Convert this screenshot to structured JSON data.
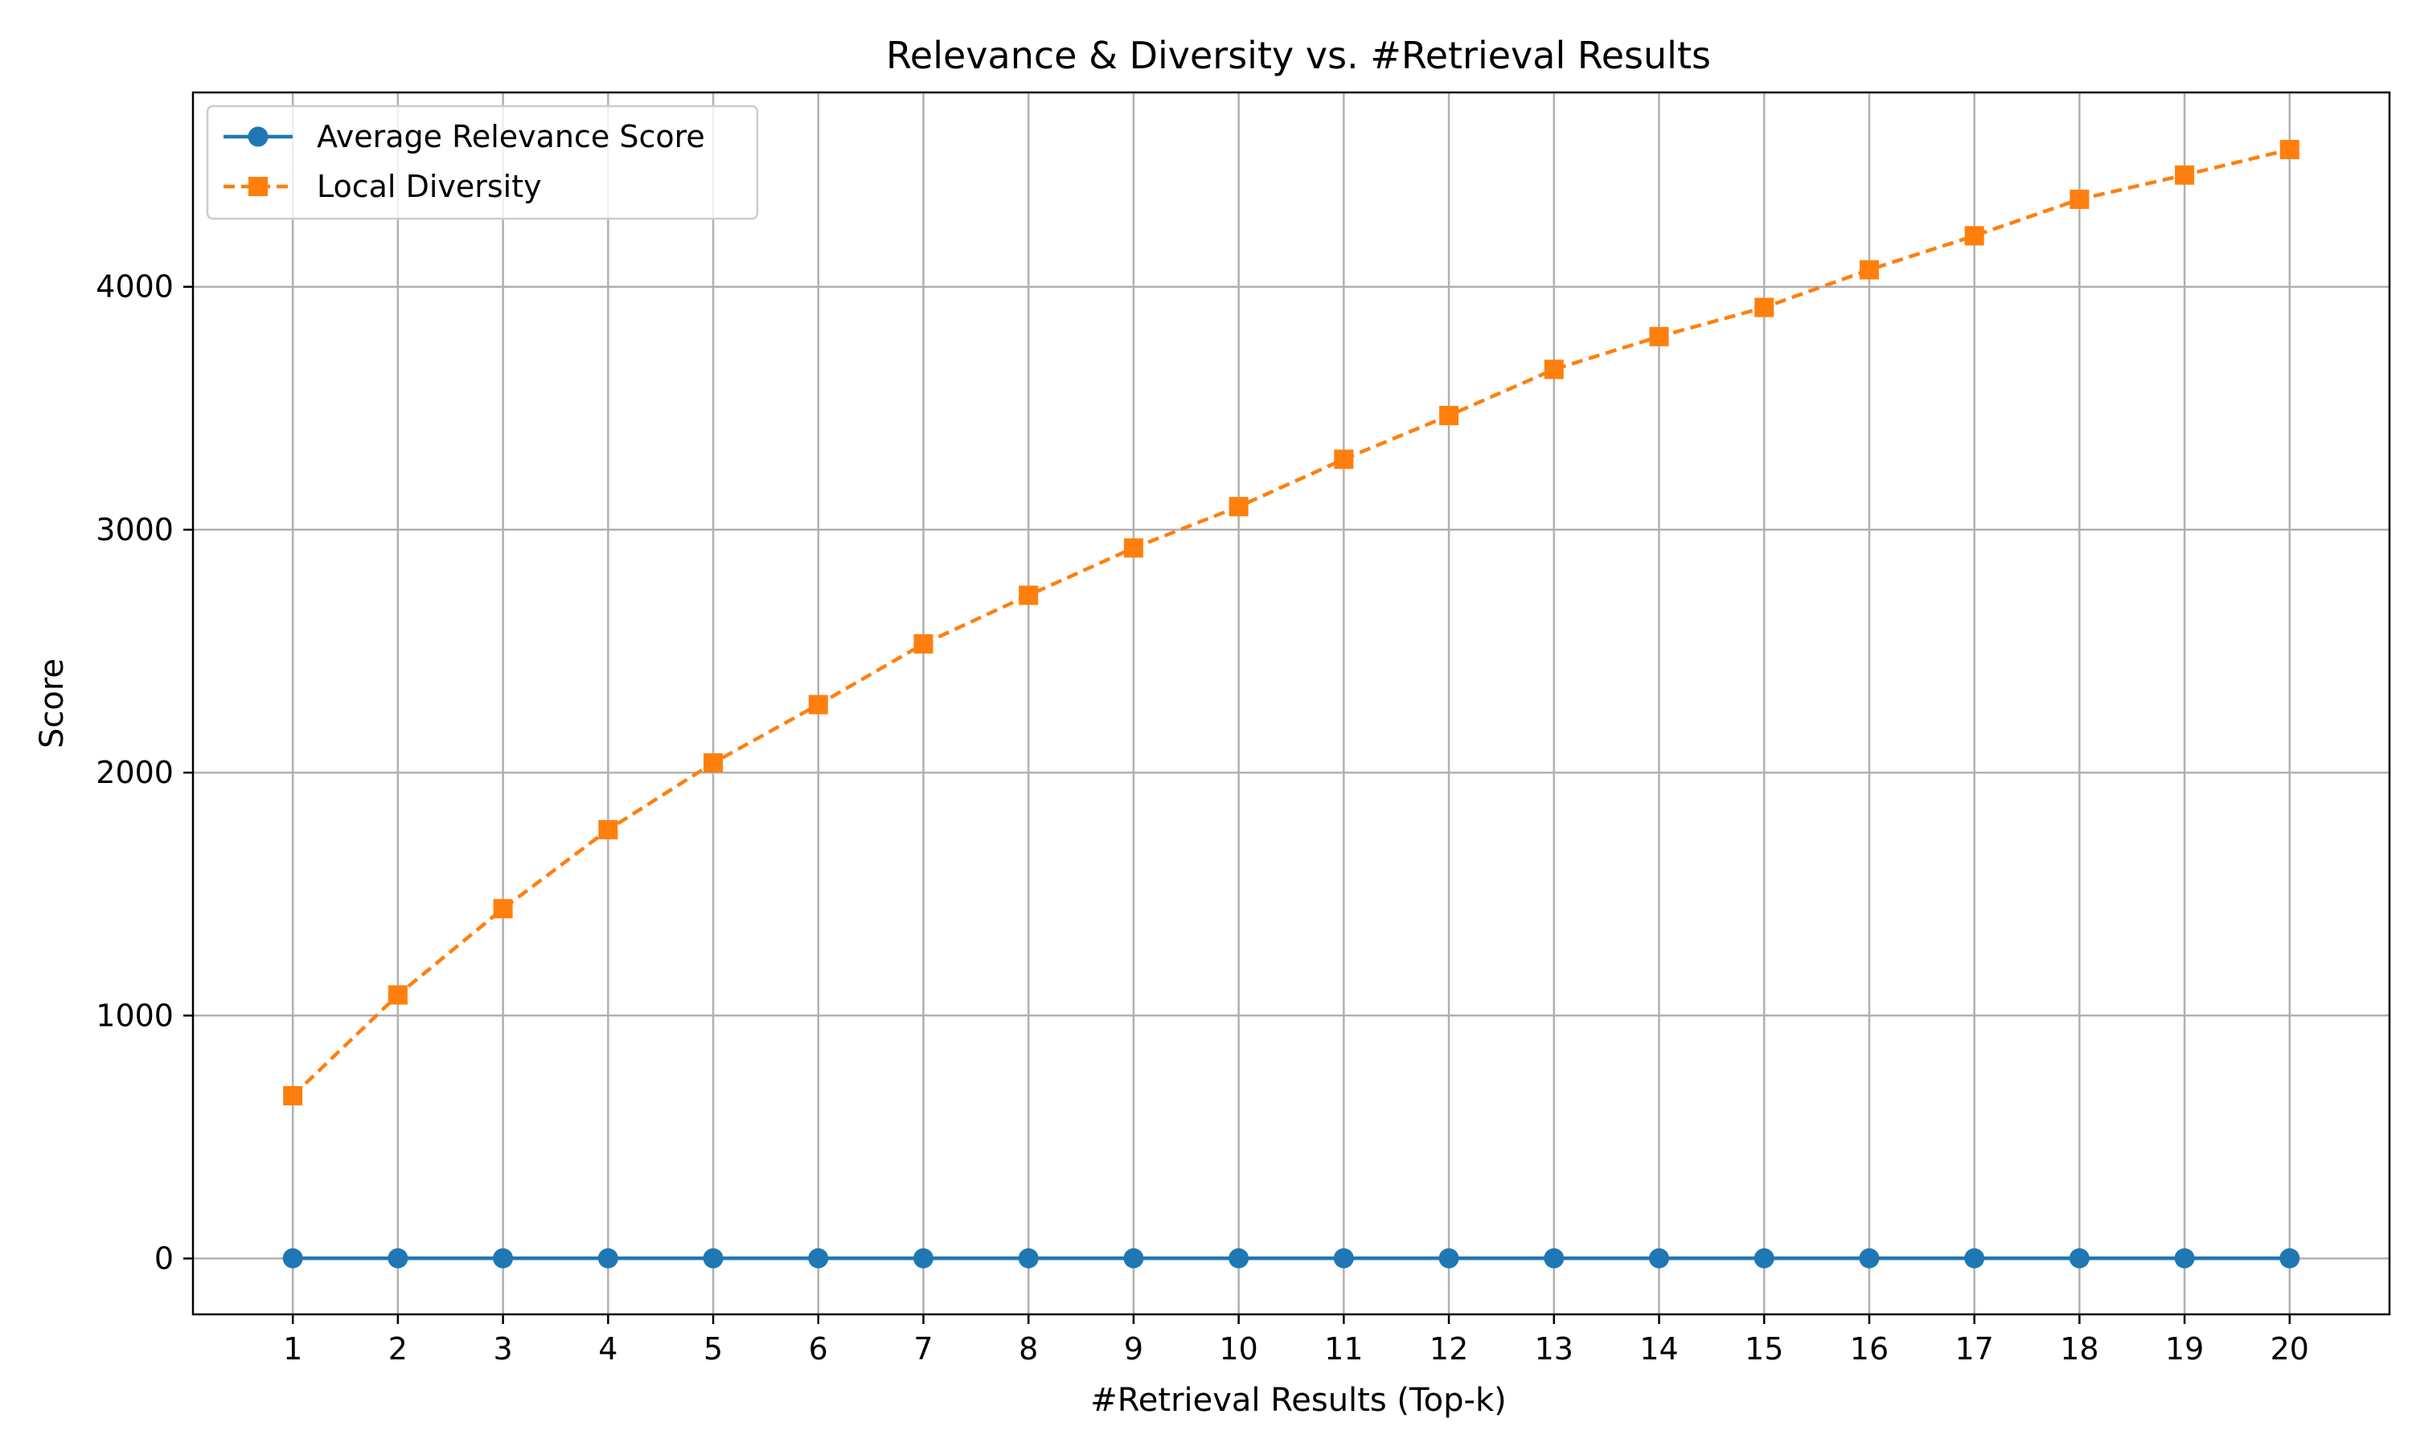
{
  "chart_data": {
    "type": "line",
    "title": "Relevance & Diversity vs. #Retrieval Results",
    "xlabel": "#Retrieval Results (Top-k)",
    "ylabel": "Score",
    "x": [
      1,
      2,
      3,
      4,
      5,
      6,
      7,
      8,
      9,
      10,
      11,
      12,
      13,
      14,
      15,
      16,
      17,
      18,
      19,
      20
    ],
    "xlim": [
      0.05,
      20.95
    ],
    "ylim": [
      -230,
      4800
    ],
    "yticks": [
      0,
      1000,
      2000,
      3000,
      4000
    ],
    "grid": true,
    "legend_position": "top-left",
    "series": [
      {
        "name": "Average Relevance Score",
        "color": "#1f77b4",
        "marker": "circle",
        "line_style": "solid",
        "values": [
          0.8,
          0.8,
          0.8,
          0.8,
          0.8,
          0.8,
          0.8,
          0.8,
          0.8,
          0.8,
          0.8,
          0.8,
          0.8,
          0.8,
          0.8,
          0.8,
          0.8,
          0.8,
          0.8,
          0.8
        ]
      },
      {
        "name": "Local Diversity",
        "color": "#ff7f0e",
        "marker": "square",
        "line_style": "dashed",
        "values": [
          670,
          1085,
          1440,
          1765,
          2040,
          2280,
          2530,
          2730,
          2925,
          3095,
          3290,
          3470,
          3660,
          3795,
          3915,
          4070,
          4210,
          4360,
          4460,
          4565
        ]
      }
    ]
  }
}
